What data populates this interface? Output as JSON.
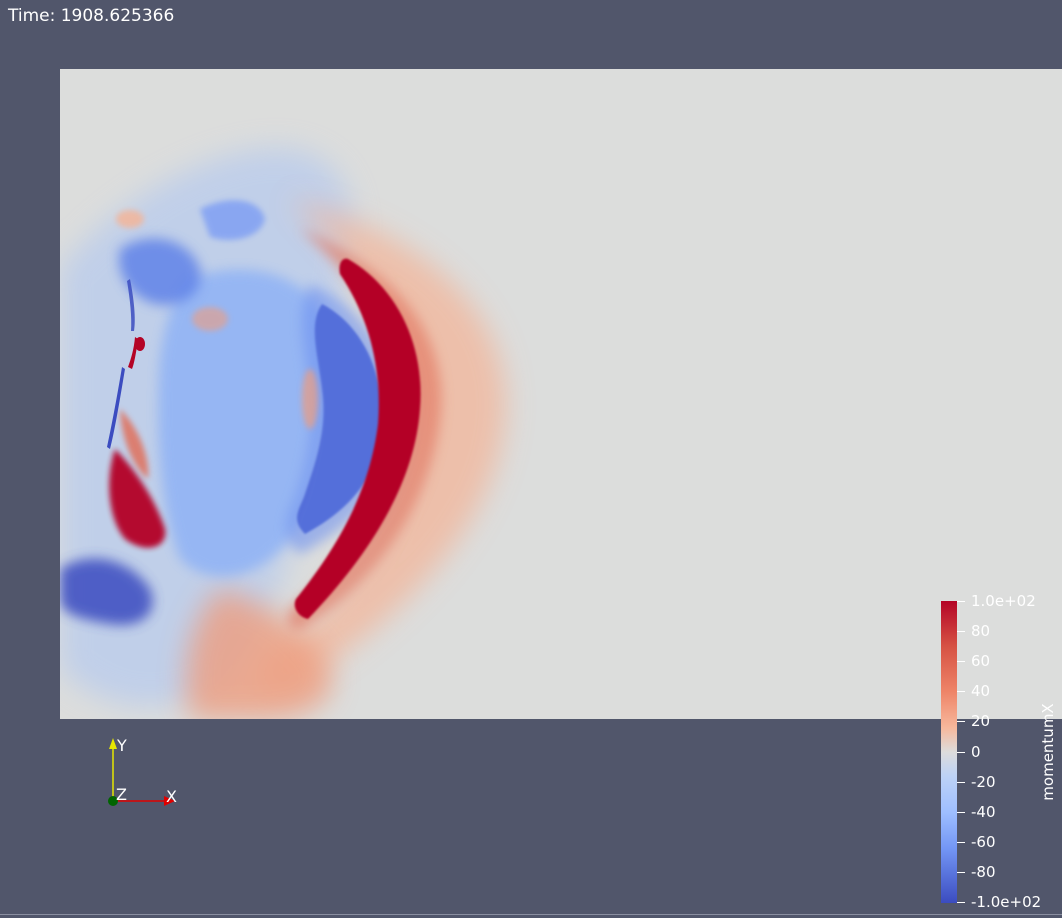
{
  "time_label": "Time: 1908.625366",
  "colorbar": {
    "title": "momentumX",
    "max_label": "1.0e+02",
    "min_label": "-1.0e+02",
    "ticks": [
      "80",
      "60",
      "40",
      "20",
      "0",
      "-20",
      "-40",
      "-60",
      "-80"
    ]
  },
  "axes": {
    "x": "X",
    "y": "Y",
    "z": "Z"
  },
  "colors": {
    "background": "#51566b",
    "view_background": "#dcdddc",
    "positive": "#b40426",
    "negative": "#3b4cc0",
    "neutral": "#dddcdc"
  },
  "icons": [
    "axes-orientation-icon"
  ]
}
